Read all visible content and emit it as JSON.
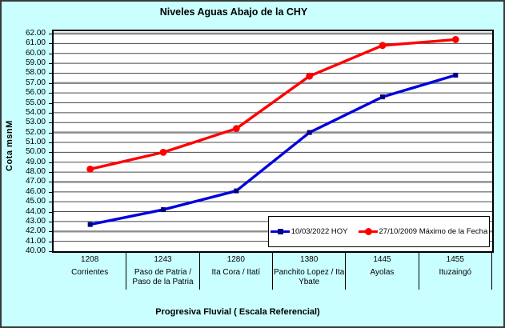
{
  "chart_data": {
    "type": "line",
    "title": "Niveles Aguas Abajo de la CHY",
    "xlabel": "Progresiva Fluvial ( Escala Referencial)",
    "ylabel": "Cota msnM",
    "ylim": [
      40,
      62
    ],
    "ytick_step": 1.0,
    "yticks": [
      "62.00",
      "61.00",
      "60.00",
      "59.00",
      "58.00",
      "57.00",
      "56.00",
      "55.00",
      "54.00",
      "53.00",
      "52.00",
      "51.00",
      "50.00",
      "49.00",
      "48.00",
      "47.00",
      "46.00",
      "45.00",
      "44.00",
      "43.00",
      "42.00",
      "41.00",
      "40.00"
    ],
    "grid": "horizontal gridlines every 1.00, emphasized gray lines at 42/47/52/57/62",
    "legend_position": "inside bottom-right",
    "categories": [
      {
        "km": "1208",
        "name": "Corrientes"
      },
      {
        "km": "1243",
        "name": "Paso de Patria / Paso de la Patria"
      },
      {
        "km": "1280",
        "name": "Ita Cora / Itatí"
      },
      {
        "km": "1380",
        "name": "Panchito Lopez / Ita Ybate"
      },
      {
        "km": "1445",
        "name": "Ayolas"
      },
      {
        "km": "1455",
        "name": "Ituzaingó"
      }
    ],
    "series": [
      {
        "name": "10/03/2022 HOY",
        "color": "#0000DD",
        "marker": "square",
        "marker_color": "#00007B",
        "values": [
          42.7,
          44.2,
          46.1,
          52.0,
          55.6,
          57.8
        ]
      },
      {
        "name": "27/10/2009 Máximo de la Fecha",
        "color": "#FF0000",
        "marker": "circle",
        "marker_color": "#FF0000",
        "values": [
          48.3,
          50.0,
          52.4,
          57.7,
          60.8,
          61.4
        ]
      }
    ]
  },
  "colors": {
    "background": "#C9FFFF",
    "plot_background": "#FFFFFF",
    "axis": "#000000",
    "grid_minor": "#4A4A4A",
    "grid_major": "#8C8C8C",
    "series_hoy": "#0000DD",
    "series_max": "#FF0000"
  }
}
